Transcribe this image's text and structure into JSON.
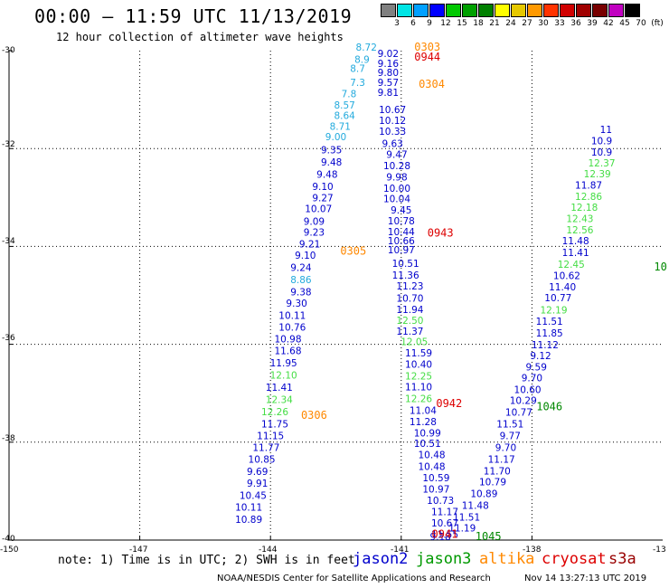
{
  "header": {
    "title": "00:00 – 11:59 UTC 11/13/2019",
    "subtitle": "12 hour collection of altimeter wave heights"
  },
  "color_scale": {
    "labels": [
      "3",
      "6",
      "9",
      "12",
      "15",
      "18",
      "21",
      "24",
      "27",
      "30",
      "33",
      "36",
      "39",
      "42",
      "45",
      "70"
    ],
    "unit": "(ft)",
    "colors": [
      "#808080",
      "#00e5e5",
      "#00a0ff",
      "#0000ff",
      "#00c800",
      "#00a000",
      "#008000",
      "#ffff00",
      "#e6c800",
      "#ff9900",
      "#ff3300",
      "#d00000",
      "#a00000",
      "#780000",
      "#c000c0",
      "#000000"
    ]
  },
  "axes": {
    "y_ticks": [
      "-30",
      "-32",
      "-34",
      "-36",
      "-38",
      "-40"
    ],
    "x_ticks": [
      "-150",
      "-147",
      "-144",
      "-141",
      "-138",
      "-13"
    ]
  },
  "note": "note: 1) Time is in UTC; 2) SWH is in feet",
  "legend": {
    "jason2": {
      "label": "jason2",
      "color": "#0000cc"
    },
    "jason3": {
      "label": "jason3",
      "color": "#009900"
    },
    "altika": {
      "label": "altika",
      "color": "#ff8800"
    },
    "cryosat": {
      "label": "cryosat",
      "color": "#dd0000"
    },
    "s3a": {
      "label": "s3a",
      "color": "#990000"
    }
  },
  "credit": "NOAA/NESDIS Center for Satellite Applications and Research",
  "generated": "Nov 14 13:27:13 UTC 2019",
  "chart_data": {
    "type": "scatter",
    "title": "00:00 – 11:59 UTC 11/13/2019",
    "subtitle": "12 hour collection of altimeter wave heights",
    "xlim": [
      -150,
      -135
    ],
    "ylim": [
      -40,
      -30
    ],
    "grid": true,
    "colors": {
      "blue": "#0000cc",
      "cyan": "#22aadd",
      "green": "#44dd44",
      "orange": "#ff8800",
      "red": "#dd0000",
      "dgreen": "#008800"
    },
    "tracks": [
      {
        "name": "asc_left",
        "labels": [
          [
            "9.02",
            "blue",
            -141.3,
            -30.13
          ],
          [
            "9.16",
            "blue",
            -141.3,
            -30.33
          ],
          [
            "9.80",
            "blue",
            -141.3,
            -30.52
          ],
          [
            "9.57",
            "blue",
            -141.3,
            -30.72
          ],
          [
            "9.81",
            "blue",
            -141.3,
            -30.92
          ],
          [
            "10.67",
            "blue",
            -141.2,
            -31.28
          ],
          [
            "10.12",
            "blue",
            -141.2,
            -31.5
          ],
          [
            "10.33",
            "blue",
            -141.2,
            -31.72
          ],
          [
            "9.63",
            "blue",
            -141.2,
            -31.97
          ],
          [
            "9.47",
            "blue",
            -141.1,
            -32.19
          ],
          [
            "10.28",
            "blue",
            -141.1,
            -32.42
          ],
          [
            "9.98",
            "blue",
            -141.1,
            -32.65
          ],
          [
            "10.00",
            "blue",
            -141.1,
            -32.88
          ],
          [
            "10.04",
            "blue",
            -141.1,
            -33.1
          ],
          [
            "9.45",
            "blue",
            -141.0,
            -33.33
          ],
          [
            "10.78",
            "blue",
            -141.0,
            -33.55
          ],
          [
            "10.44",
            "blue",
            -141.0,
            -33.77
          ],
          [
            "10.66",
            "blue",
            -141.0,
            -33.96
          ],
          [
            "10.97",
            "blue",
            -141.0,
            -34.14
          ],
          [
            "10.51",
            "blue",
            -140.9,
            -34.42
          ],
          [
            "11.36",
            "blue",
            -140.9,
            -34.66
          ],
          [
            "11.23",
            "blue",
            -140.8,
            -34.88
          ],
          [
            "10.70",
            "blue",
            -140.8,
            -35.13
          ],
          [
            "11.94",
            "blue",
            -140.8,
            -35.36
          ],
          [
            "12.50",
            "green",
            -140.8,
            -35.58
          ],
          [
            "11.37",
            "blue",
            -140.8,
            -35.8
          ],
          [
            "12.05",
            "green",
            -140.7,
            -36.02
          ],
          [
            "11.59",
            "blue",
            -140.6,
            -36.25
          ],
          [
            "10.40",
            "blue",
            -140.6,
            -36.48
          ],
          [
            "12.25",
            "green",
            -140.6,
            -36.72
          ],
          [
            "11.10",
            "blue",
            -140.6,
            -36.94
          ],
          [
            "12.26",
            "green",
            -140.6,
            -37.18
          ],
          [
            "11.04",
            "blue",
            -140.5,
            -37.42
          ],
          [
            "11.28",
            "blue",
            -140.5,
            -37.65
          ],
          [
            "10.99",
            "blue",
            -140.4,
            -37.88
          ],
          [
            "10.51",
            "blue",
            -140.4,
            -38.1
          ],
          [
            "10.48",
            "blue",
            -140.3,
            -38.33
          ],
          [
            "10.48",
            "blue",
            -140.3,
            -38.57
          ],
          [
            "10.59",
            "blue",
            -140.2,
            -38.8
          ],
          [
            "10.97",
            "blue",
            -140.2,
            -39.03
          ],
          [
            "10.73",
            "blue",
            -140.1,
            -39.26
          ],
          [
            "11.17",
            "blue",
            -140.0,
            -39.49
          ],
          [
            "10.67",
            "blue",
            -140.0,
            -39.72
          ],
          [
            "11.55",
            "blue",
            -140.0,
            -39.95
          ]
        ]
      },
      {
        "name": "desc_left",
        "labels": [
          [
            "8.72",
            "cyan",
            -141.8,
            -30.0
          ],
          [
            "8.9",
            "cyan",
            -141.9,
            -30.25
          ],
          [
            "8.7",
            "cyan",
            -142.0,
            -30.43
          ],
          [
            "7.3",
            "cyan",
            -142.0,
            -30.72
          ],
          [
            "7.8",
            "cyan",
            -142.2,
            -30.95
          ],
          [
            "8.57",
            "cyan",
            -142.3,
            -31.18
          ],
          [
            "8.64",
            "cyan",
            -142.3,
            -31.4
          ],
          [
            "8.71",
            "cyan",
            -142.4,
            -31.62
          ],
          [
            "9.00",
            "cyan",
            -142.5,
            -31.83
          ],
          [
            "9.35",
            "blue",
            -142.6,
            -32.1
          ],
          [
            "9.48",
            "blue",
            -142.6,
            -32.35
          ],
          [
            "9.48",
            "blue",
            -142.7,
            -32.6
          ],
          [
            "9.10",
            "blue",
            -142.8,
            -32.85
          ],
          [
            "9.27",
            "blue",
            -142.8,
            -33.08
          ],
          [
            "10.07",
            "blue",
            -142.9,
            -33.3
          ],
          [
            "9.09",
            "blue",
            -143.0,
            -33.56
          ],
          [
            "9.23",
            "blue",
            -143.0,
            -33.78
          ],
          [
            "9.21",
            "blue",
            -143.1,
            -34.02
          ],
          [
            "9.10",
            "blue",
            -143.2,
            -34.25
          ],
          [
            "9.24",
            "blue",
            -143.3,
            -34.5
          ],
          [
            "8.86",
            "cyan",
            -143.3,
            -34.75
          ],
          [
            "9.38",
            "blue",
            -143.3,
            -35.0
          ],
          [
            "9.30",
            "blue",
            -143.4,
            -35.23
          ],
          [
            "10.11",
            "blue",
            -143.5,
            -35.48
          ],
          [
            "10.76",
            "blue",
            -143.5,
            -35.72
          ],
          [
            "10.98",
            "blue",
            -143.6,
            -35.96
          ],
          [
            "11.68",
            "blue",
            -143.6,
            -36.2
          ],
          [
            "11.95",
            "blue",
            -143.7,
            -36.45
          ],
          [
            "12.10",
            "green",
            -143.7,
            -36.7
          ],
          [
            "11.41",
            "blue",
            -143.8,
            -36.95
          ],
          [
            "12.34",
            "green",
            -143.8,
            -37.2
          ],
          [
            "12.26",
            "green",
            -143.9,
            -37.45
          ],
          [
            "11.75",
            "blue",
            -143.9,
            -37.7
          ],
          [
            "11.15",
            "blue",
            -144.0,
            -37.94
          ],
          [
            "11.77",
            "blue",
            -144.1,
            -38.18
          ],
          [
            "10.85",
            "blue",
            -144.2,
            -38.42
          ],
          [
            "9.69",
            "blue",
            -144.3,
            -38.67
          ],
          [
            "9.91",
            "blue",
            -144.3,
            -38.91
          ],
          [
            "10.45",
            "blue",
            -144.4,
            -39.16
          ],
          [
            "10.11",
            "blue",
            -144.5,
            -39.4
          ],
          [
            "10.89",
            "blue",
            -144.5,
            -39.65
          ]
        ]
      },
      {
        "name": "asc_right",
        "labels": [
          [
            "9.18",
            "blue",
            -140.1,
            -40.0
          ],
          [
            "11.19",
            "blue",
            -139.6,
            -39.82
          ],
          [
            "11.51",
            "blue",
            -139.5,
            -39.6
          ],
          [
            "11.48",
            "blue",
            -139.3,
            -39.36
          ],
          [
            "10.89",
            "blue",
            -139.1,
            -39.12
          ],
          [
            "10.79",
            "blue",
            -138.9,
            -38.88
          ],
          [
            "11.70",
            "blue",
            -138.8,
            -38.66
          ],
          [
            "11.17",
            "blue",
            -138.7,
            -38.42
          ],
          [
            "9.70",
            "blue",
            -138.6,
            -38.18
          ],
          [
            "9.77",
            "blue",
            -138.5,
            -37.94
          ],
          [
            "11.51",
            "blue",
            -138.5,
            -37.7
          ],
          [
            "10.77",
            "blue",
            -138.3,
            -37.46
          ],
          [
            "10.29",
            "blue",
            -138.2,
            -37.22
          ],
          [
            "10.60",
            "blue",
            -138.1,
            -37.0
          ],
          [
            "9.70",
            "blue",
            -138.0,
            -36.76
          ],
          [
            "9.59",
            "blue",
            -137.9,
            -36.53
          ],
          [
            "9.12",
            "blue",
            -137.8,
            -36.3
          ],
          [
            "11.12",
            "blue",
            -137.7,
            -36.08
          ],
          [
            "11.85",
            "blue",
            -137.6,
            -35.84
          ],
          [
            "11.51",
            "blue",
            -137.6,
            -35.6
          ],
          [
            "12.19",
            "green",
            -137.5,
            -35.37
          ],
          [
            "10.77",
            "blue",
            -137.4,
            -35.12
          ],
          [
            "11.40",
            "blue",
            -137.3,
            -34.9
          ],
          [
            "10.62",
            "blue",
            -137.2,
            -34.67
          ],
          [
            "12.45",
            "green",
            -137.1,
            -34.44
          ],
          [
            "11.41",
            "blue",
            -137.0,
            -34.2
          ],
          [
            "11.48",
            "blue",
            -137.0,
            -33.96
          ],
          [
            "12.56",
            "green",
            -136.9,
            -33.73
          ],
          [
            "12.43",
            "green",
            -136.9,
            -33.5
          ],
          [
            "12.18",
            "green",
            -136.8,
            -33.27
          ],
          [
            "12.86",
            "green",
            -136.7,
            -33.05
          ],
          [
            "11.87",
            "blue",
            -136.7,
            -32.82
          ],
          [
            "12.39",
            "green",
            -136.5,
            -32.59
          ],
          [
            "12.37",
            "green",
            -136.4,
            -32.37
          ],
          [
            "10.9",
            "blue",
            -136.4,
            -32.14
          ],
          [
            "10.9",
            "blue",
            -136.4,
            -31.91
          ],
          [
            "11",
            "blue",
            -136.3,
            -31.68
          ]
        ]
      }
    ],
    "time_labels": [
      {
        "text": "0303",
        "color": "orange",
        "x": -140.7,
        "y": -30.0
      },
      {
        "text": "0944",
        "color": "red",
        "x": -140.7,
        "y": -30.2
      },
      {
        "text": "0304",
        "color": "orange",
        "x": -140.6,
        "y": -30.76
      },
      {
        "text": "0943",
        "color": "red",
        "x": -140.4,
        "y": -33.8
      },
      {
        "text": "0305",
        "color": "orange",
        "x": -142.4,
        "y": -34.17
      },
      {
        "text": "0942",
        "color": "red",
        "x": -140.2,
        "y": -37.28
      },
      {
        "text": "0306",
        "color": "orange",
        "x": -143.3,
        "y": -37.52
      },
      {
        "text": "1046",
        "color": "dgreen",
        "x": -137.9,
        "y": -37.35
      },
      {
        "text": "10",
        "color": "dgreen",
        "x": -135.2,
        "y": -34.49
      },
      {
        "text": "0941",
        "color": "red",
        "x": -140.3,
        "y": -39.95
      },
      {
        "text": "1045",
        "color": "dgreen",
        "x": -139.3,
        "y": -40.0
      }
    ]
  }
}
